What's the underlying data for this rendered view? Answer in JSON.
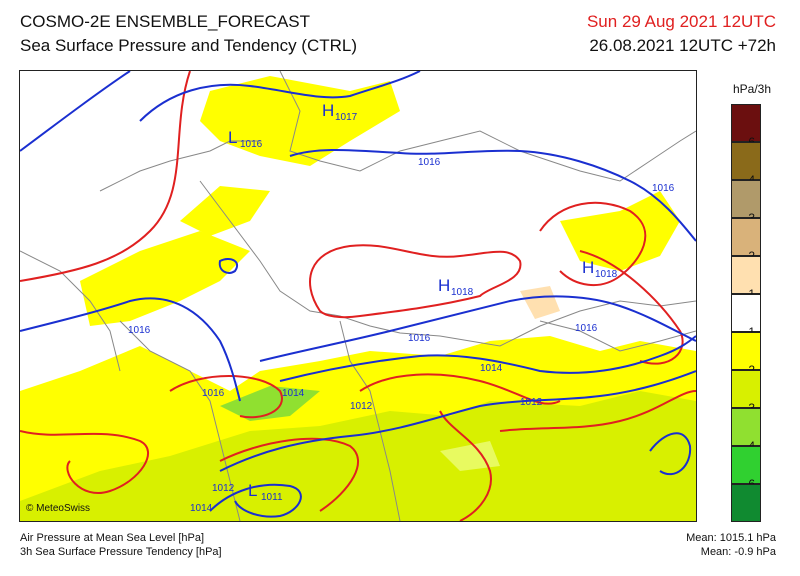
{
  "header": {
    "title": "COSMO-2E ENSEMBLE_FORECAST",
    "subtitle": "Sea Surface Pressure and Tendency (CTRL)",
    "valid_time": "Sun 29 Aug 2021 12UTC",
    "run_time": "26.08.2021 12UTC +72h"
  },
  "legend": {
    "unit": "hPa/3h",
    "items": [
      {
        "label": "6",
        "color": "#6b0f0f"
      },
      {
        "label": "4",
        "color": "#8a6a1a"
      },
      {
        "label": "3",
        "color": "#b09a6a"
      },
      {
        "label": "2",
        "color": "#d9b27a"
      },
      {
        "label": "1",
        "color": "#ffe0b0"
      },
      {
        "label": "-1",
        "color": "#ffffff"
      },
      {
        "label": "-2",
        "color": "#ffff00"
      },
      {
        "label": "-3",
        "color": "#d8f000"
      },
      {
        "label": "-4",
        "color": "#90e030"
      },
      {
        "label": "-6",
        "color": "#30d030"
      },
      {
        "label": "",
        "color": "#108a30"
      }
    ]
  },
  "map_labels": {
    "systems": [
      {
        "letter": "H",
        "value": "1017"
      },
      {
        "letter": "L",
        "value": "1016"
      },
      {
        "letter": "H",
        "value": "1018"
      },
      {
        "letter": "H",
        "value": "1018"
      },
      {
        "letter": "L",
        "value": "1011"
      }
    ],
    "isobars": [
      "1016",
      "1016",
      "1016",
      "1016",
      "1016",
      "1016",
      "1014",
      "1014",
      "1012",
      "1012",
      "1012",
      "1014"
    ]
  },
  "copyright": "© MeteoSwiss",
  "footer": {
    "line1": "Air Pressure at Mean Sea Level [hPa]",
    "line2": "3h Sea Surface Pressure Tendency [hPa]",
    "mean1": "Mean: 1015.1 hPa",
    "mean2": "Mean:  -0.9 hPa"
  },
  "colors": {
    "isobar": "#1a2fd0",
    "tendency_contour": "#e02020",
    "border": "#888888",
    "fall_light": "#ffff00",
    "fall_mid": "#d8f000",
    "fall_strong": "#90e030"
  }
}
